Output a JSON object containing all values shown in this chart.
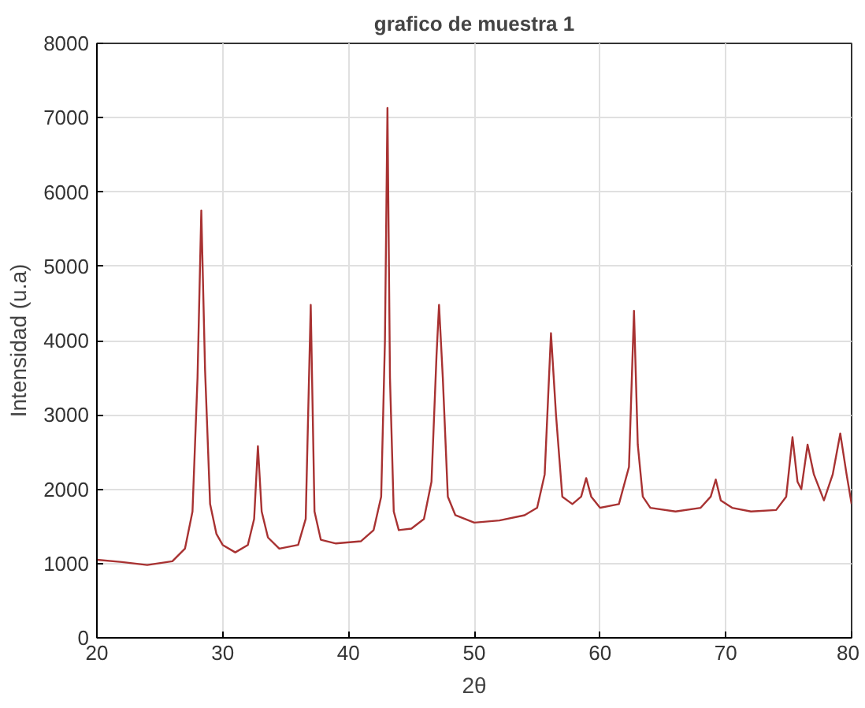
{
  "chart_data": {
    "type": "line",
    "title": "grafico de muestra 1",
    "xlabel": "2θ",
    "ylabel": "Intensidad (u.a)",
    "xlim": [
      20,
      80
    ],
    "xticks": [
      20,
      30,
      40,
      50,
      60,
      70,
      80
    ],
    "ylim": [
      0,
      8000
    ],
    "yticks": [
      0,
      1000,
      2000,
      3000,
      4000,
      5000,
      6000,
      7000,
      8000
    ],
    "grid": true,
    "marker": "none",
    "line_style": "solid",
    "series": [
      {
        "color": "#a83232",
        "x": [
          20,
          22,
          24,
          26,
          27,
          27.6,
          28,
          28.3,
          28.6,
          29,
          29.5,
          30,
          31,
          32,
          32.5,
          32.8,
          33.1,
          33.6,
          34.5,
          36,
          36.6,
          37.0,
          37.3,
          37.8,
          39,
          41,
          42,
          42.6,
          42.9,
          43.1,
          43.3,
          43.6,
          44,
          45,
          46,
          46.6,
          47.0,
          47.2,
          47.5,
          47.9,
          48.5,
          50,
          52,
          54,
          55,
          55.6,
          56.1,
          56.5,
          57,
          57.8,
          58.5,
          58.9,
          59.3,
          60,
          61.5,
          62.3,
          62.7,
          63,
          63.4,
          64,
          66,
          68,
          68.8,
          69.2,
          69.6,
          70.5,
          72,
          74,
          74.8,
          75.3,
          75.7,
          76.0,
          76.5,
          77,
          77.8,
          78.5,
          79.1,
          79.6,
          80
        ],
        "values": [
          1050,
          1020,
          980,
          1030,
          1200,
          1700,
          3500,
          5750,
          3600,
          1800,
          1400,
          1250,
          1150,
          1250,
          1600,
          2580,
          1700,
          1350,
          1200,
          1250,
          1600,
          4480,
          1700,
          1320,
          1270,
          1300,
          1450,
          1900,
          4000,
          7130,
          3500,
          1700,
          1450,
          1470,
          1600,
          2100,
          3800,
          4480,
          3500,
          1900,
          1650,
          1550,
          1580,
          1650,
          1750,
          2200,
          4100,
          3000,
          1900,
          1800,
          1900,
          2150,
          1900,
          1750,
          1800,
          2300,
          4400,
          2600,
          1900,
          1750,
          1700,
          1750,
          1900,
          2130,
          1850,
          1750,
          1700,
          1720,
          1900,
          2700,
          2100,
          2000,
          2600,
          2200,
          1850,
          2200,
          2750,
          2200,
          1800
        ]
      }
    ]
  }
}
